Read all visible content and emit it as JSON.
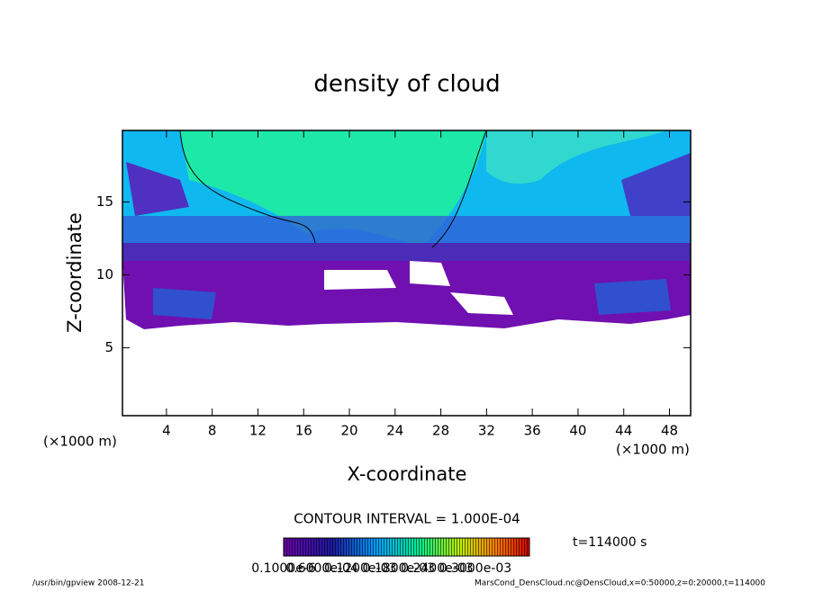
{
  "chart_data": {
    "type": "contour",
    "title": "density of cloud",
    "x_label": "X-coordinate",
    "y_label": "Z-coordinate",
    "axis_units": [
      "(×1000 m)",
      "(×1000 m)"
    ],
    "xlim": [
      0.15,
      49.85
    ],
    "xticks": [
      4,
      8,
      12,
      16,
      20,
      24,
      28,
      32,
      36,
      40,
      44,
      48
    ],
    "ylim": [
      0.35,
      19.9
    ],
    "yticks": [
      5,
      10,
      15
    ],
    "contour_interval": "CONTOUR INTERVAL = 1.000E-04",
    "time": "t=114000 s",
    "colorbar_labels": [
      "0.1000e-6",
      "0.6000e-04",
      "0.1200e-03",
      "0.1800e-03",
      "0.2400e-03",
      "0.3000e-03"
    ],
    "footer_left": "/usr/bin/gpview  2008-12-21",
    "footer_right": "MarsCond_DensCloud.nc@DensCloud,x=0:50000,z=0:20000,t=114000"
  }
}
